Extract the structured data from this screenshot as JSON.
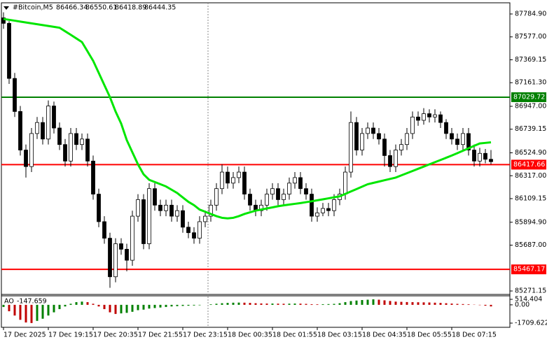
{
  "chart_data": [
    {
      "type": "candlestick",
      "title": "#Bitcoin,M5",
      "ylim": [
        85246,
        87880
      ],
      "yticks": [
        {
          "value": 87784.9,
          "label": "87784.90"
        },
        {
          "value": 87577,
          "label": "87577.00"
        },
        {
          "value": 87369.15,
          "label": "87369.15"
        },
        {
          "value": 87161.3,
          "label": "87161.30"
        },
        {
          "value": 86947,
          "label": "86947.00"
        },
        {
          "value": 86739.15,
          "label": "86739.15"
        },
        {
          "value": 86524.9,
          "label": "86524.90"
        },
        {
          "value": 86317,
          "label": "86317.00"
        },
        {
          "value": 86109.15,
          "label": "86109.15"
        },
        {
          "value": 85894.9,
          "label": "85894.90"
        },
        {
          "value": 85687,
          "label": "85687.00"
        },
        {
          "value": 85271.15,
          "label": "85271.15"
        }
      ],
      "xlabels": [
        "17 Dec 2025",
        "17 Dec 19:15",
        "17 Dec 20:35",
        "17 Dec 21:55",
        "17 Dec 23:15",
        "18 Dec 00:35",
        "18 Dec 01:55",
        "18 Dec 03:15",
        "18 Dec 04:35",
        "18 Dec 05:55",
        "18 Dec 07:15"
      ],
      "candles": {
        "color": "#000000",
        "open": [
          87750,
          87700,
          87200,
          86900,
          86550,
          86400,
          86700,
          86800,
          86650,
          86950,
          86750,
          86600,
          86450,
          86700,
          86600,
          86650,
          86450,
          86150,
          85900,
          85750,
          85400,
          85700,
          85650,
          85550,
          85950,
          86100,
          85700,
          86200,
          86050,
          86000,
          86050,
          85950,
          86000,
          85850,
          85800,
          85750,
          85900,
          85950,
          86050,
          86200,
          86350,
          86250,
          86300,
          86350,
          86150,
          86050,
          86000,
          86050,
          86150,
          86200,
          86100,
          86150,
          86250,
          86300,
          86200,
          86150,
          85950,
          85980,
          86020,
          86000,
          86100,
          86150,
          86350,
          86800,
          86550,
          86700,
          86750,
          86700,
          86650,
          86500,
          86400,
          86550,
          86600,
          86700,
          86850,
          86820,
          86880,
          86850,
          86870,
          86800,
          86700,
          86650,
          86600,
          86700,
          86550,
          86450,
          86520,
          86466.34
        ],
        "high": [
          87800,
          87720,
          87250,
          86950,
          86600,
          86750,
          86850,
          86850,
          87000,
          86990,
          86800,
          86650,
          86750,
          86750,
          86700,
          86700,
          86500,
          86200,
          85950,
          85800,
          85750,
          85750,
          85700,
          86000,
          86150,
          86150,
          86250,
          86250,
          86100,
          86100,
          86100,
          86050,
          86050,
          85900,
          85850,
          85950,
          86000,
          86100,
          86250,
          86420,
          86400,
          86350,
          86400,
          86400,
          86200,
          86100,
          86100,
          86200,
          86250,
          86250,
          86200,
          86300,
          86350,
          86350,
          86250,
          86200,
          86030,
          86070,
          86070,
          86150,
          86200,
          86400,
          86900,
          86850,
          86750,
          86800,
          86800,
          86750,
          86700,
          86550,
          86600,
          86650,
          86750,
          86900,
          86900,
          86930,
          86920,
          86920,
          86900,
          86830,
          86750,
          86700,
          86750,
          86750,
          86600,
          86570,
          86560,
          86550.61
        ],
        "low": [
          87650,
          87150,
          86850,
          86500,
          86300,
          86350,
          86650,
          86600,
          86600,
          86700,
          86550,
          86400,
          86400,
          86550,
          86550,
          86400,
          86100,
          85850,
          85700,
          85300,
          85350,
          85600,
          85450,
          85500,
          85900,
          85650,
          85650,
          86000,
          85950,
          85950,
          85900,
          85900,
          85800,
          85750,
          85700,
          85700,
          85850,
          85900,
          86000,
          86150,
          86200,
          86200,
          86250,
          86100,
          86000,
          85950,
          85950,
          86000,
          86100,
          86050,
          86050,
          86100,
          86200,
          86150,
          86100,
          85900,
          85900,
          85950,
          85950,
          85950,
          86050,
          86100,
          86300,
          86500,
          86500,
          86650,
          86650,
          86600,
          86400,
          86350,
          86350,
          86500,
          86550,
          86650,
          86770,
          86780,
          86800,
          86800,
          86750,
          86650,
          86600,
          86550,
          86550,
          86500,
          86400,
          86400,
          86430,
          86418.89
        ],
        "close": [
          87700,
          87200,
          86900,
          86550,
          86400,
          86700,
          86800,
          86650,
          86950,
          86750,
          86600,
          86450,
          86700,
          86600,
          86650,
          86450,
          86150,
          85900,
          85750,
          85400,
          85700,
          85650,
          85550,
          85950,
          86100,
          85700,
          86200,
          86050,
          86000,
          86050,
          85950,
          86000,
          85850,
          85800,
          85750,
          85900,
          85950,
          86050,
          86200,
          86350,
          86250,
          86300,
          86350,
          86150,
          86050,
          86000,
          86050,
          86150,
          86200,
          86100,
          86150,
          86250,
          86300,
          86200,
          86150,
          85950,
          85980,
          86020,
          86000,
          86100,
          86150,
          86350,
          86800,
          86550,
          86700,
          86750,
          86700,
          86650,
          86500,
          86400,
          86550,
          86600,
          86700,
          86850,
          86820,
          86880,
          86850,
          86870,
          86800,
          86700,
          86650,
          86600,
          86700,
          86550,
          86450,
          86520,
          86466.34,
          86444.35
        ]
      },
      "ma": {
        "color": "#00e600",
        "values": [
          87740,
          87732,
          87724,
          87716,
          87708,
          87700,
          87692,
          87684,
          87676,
          87668,
          87660,
          87628,
          87596,
          87563,
          87530,
          87445,
          87360,
          87250,
          87140,
          87030,
          86900,
          86790,
          86640,
          86530,
          86420,
          86330,
          86280,
          86260,
          86240,
          86220,
          86190,
          86160,
          86120,
          86080,
          86050,
          86010,
          85990,
          85970,
          85950,
          85935,
          85930,
          85935,
          85950,
          85970,
          85985,
          86000,
          86010,
          86020,
          86030,
          86040,
          86048,
          86055,
          86062,
          86069,
          86077,
          86085,
          86094,
          86103,
          86112,
          86121,
          86130,
          86152,
          86174,
          86196,
          86218,
          86240,
          86252,
          86264,
          86276,
          86288,
          86300,
          86320,
          86340,
          86360,
          86380,
          86400,
          86420,
          86440,
          86460,
          86480,
          86500,
          86522,
          86544,
          86566,
          86588,
          86610,
          86615,
          86620
        ]
      },
      "levels": [
        {
          "value": 87029.72,
          "color": "#008000"
        },
        {
          "value": 86417.66,
          "color": "#ff0000"
        },
        {
          "value": 85467.17,
          "color": "#ff0000"
        }
      ]
    },
    {
      "type": "bar",
      "name": "AO",
      "ylim": [
        -1709.622,
        514.404
      ],
      "yticks": [
        514.404,
        {
          "value": 0,
          "label": "0.00"
        },
        -1709.622
      ],
      "up_color": "#008000",
      "down_color": "#c00000",
      "values": [
        -200,
        -600,
        -1000,
        -1400,
        -1650,
        -1700,
        -1500,
        -1300,
        -1000,
        -700,
        -400,
        -150,
        100,
        250,
        300,
        250,
        100,
        -150,
        -400,
        -700,
        -850,
        -800,
        -750,
        -650,
        -500,
        -450,
        -350,
        -300,
        -250,
        -200,
        -150,
        -120,
        -100,
        -80,
        -60,
        -40,
        0,
        50,
        100,
        150,
        180,
        200,
        210,
        200,
        180,
        150,
        130,
        120,
        120,
        110,
        100,
        110,
        120,
        110,
        90,
        60,
        50,
        60,
        70,
        90,
        150,
        250,
        350,
        400,
        450,
        480,
        514.404,
        480,
        420,
        360,
        300,
        280,
        260,
        250,
        240,
        230,
        220,
        200,
        180,
        150,
        120,
        90,
        70,
        50,
        20,
        -30,
        -80,
        -147.659
      ]
    }
  ]
}
